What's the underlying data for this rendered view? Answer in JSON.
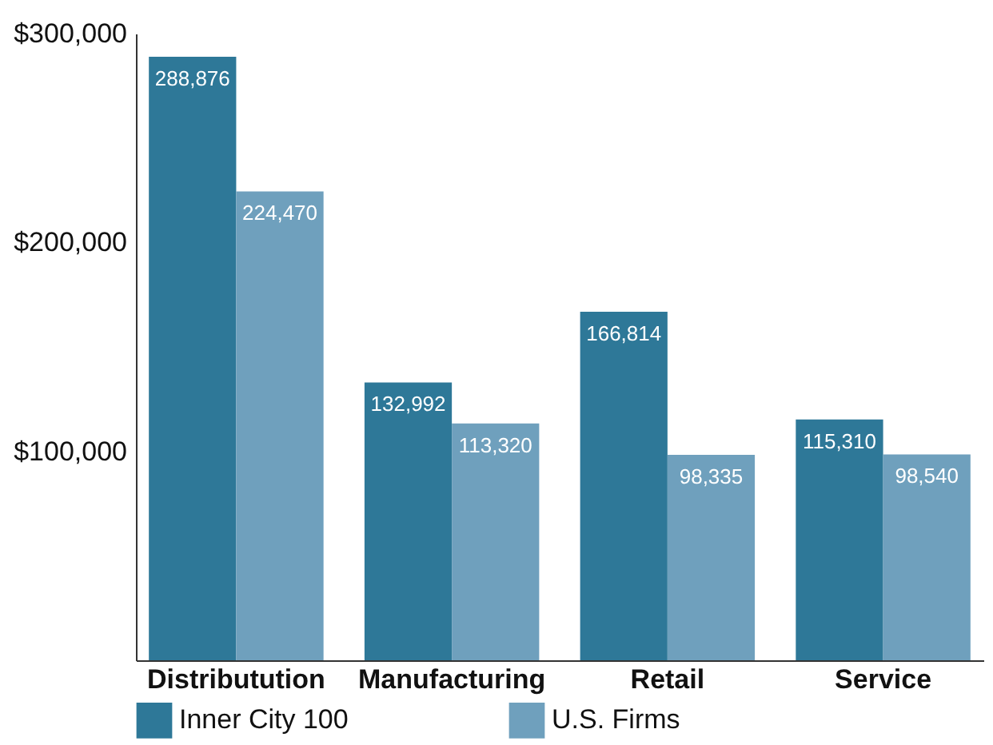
{
  "chart_data": {
    "type": "bar",
    "categories": [
      "Distributution",
      "Manufacturing",
      "Retail",
      "Service"
    ],
    "series": [
      {
        "name": "Inner City 100",
        "color": "#2e7898",
        "values": [
          288876,
          132992,
          166814,
          115310
        ],
        "value_labels": [
          "288,876",
          "132,992",
          "166,814",
          "115,310"
        ]
      },
      {
        "name": "U.S. Firms",
        "color": "#6fa0bd",
        "values": [
          224470,
          113320,
          98335,
          98540
        ],
        "value_labels": [
          "224,470",
          "113,320",
          "98,335",
          "98,540"
        ]
      }
    ],
    "ylim": [
      0,
      300000
    ],
    "yticks": [
      {
        "value": 100000,
        "label": "$100,000"
      },
      {
        "value": 200000,
        "label": "$200,000"
      },
      {
        "value": 300000,
        "label": "$300,000"
      }
    ],
    "legend": "bottom",
    "grid": false
  }
}
